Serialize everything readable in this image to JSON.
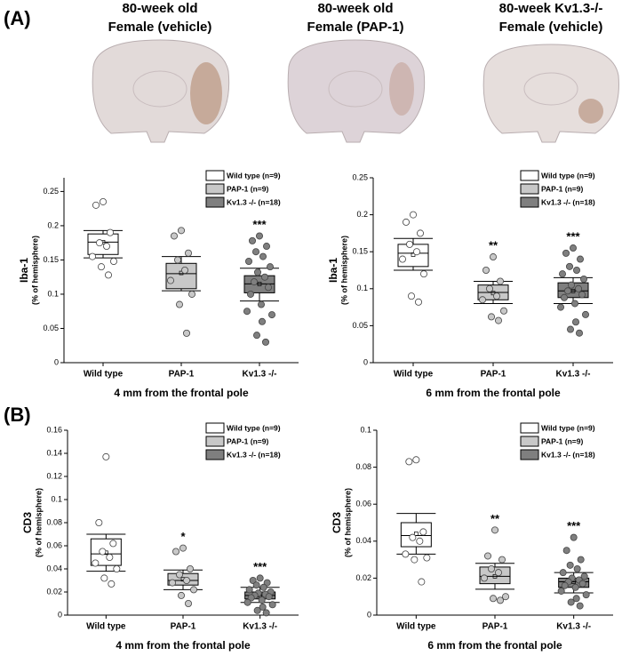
{
  "panel_labels": [
    "(A)",
    "(B)"
  ],
  "images": [
    {
      "title": [
        "80-week old",
        "Female (vehicle)"
      ]
    },
    {
      "title": [
        "80-week old",
        "Female (PAP-1)"
      ]
    },
    {
      "title": [
        "80-week Kv1.3-/-",
        "Female (vehicle)"
      ]
    }
  ],
  "chart_data": [
    {
      "type": "box",
      "ylabel": "Iba-1",
      "ylabel_sub": "(% of hemisphere)",
      "xlabel": "4 mm from the frontal pole",
      "categories": [
        "Wild type",
        "PAP-1",
        "Kv1.3 -/-"
      ],
      "ylim": [
        0,
        0.27
      ],
      "yticks": [
        0,
        0.05,
        0.1,
        0.15,
        0.2,
        0.25
      ],
      "legend": "top-right",
      "series": [
        {
          "name": "Wild type (n=9)",
          "color": "#ffffff",
          "q1": 0.158,
          "median": 0.176,
          "q3": 0.188,
          "whisker_low": 0.153,
          "whisker_high": 0.193,
          "mean": 0.176,
          "points": [
            0.235,
            0.23,
            0.19,
            0.175,
            0.17,
            0.155,
            0.148,
            0.14,
            0.128
          ]
        },
        {
          "name": "PAP-1 (n=9)",
          "color": "#c8c8c8",
          "q1": 0.108,
          "median": 0.13,
          "q3": 0.145,
          "whisker_low": 0.105,
          "whisker_high": 0.155,
          "mean": 0.131,
          "points": [
            0.193,
            0.185,
            0.16,
            0.15,
            0.135,
            0.12,
            0.1,
            0.085,
            0.043
          ]
        },
        {
          "name": "Kv1.3 -/- (n=18)",
          "color": "#7f7f7f",
          "q1": 0.102,
          "median": 0.115,
          "q3": 0.127,
          "whisker_low": 0.09,
          "whisker_high": 0.138,
          "mean": 0.115,
          "annotation": "***",
          "points": [
            0.185,
            0.178,
            0.17,
            0.162,
            0.155,
            0.148,
            0.14,
            0.132,
            0.125,
            0.118,
            0.11,
            0.1,
            0.085,
            0.075,
            0.07,
            0.06,
            0.04,
            0.03
          ]
        }
      ]
    },
    {
      "type": "box",
      "ylabel": "Iba-1",
      "ylabel_sub": "(% of hemisphere)",
      "xlabel": "6 mm from the frontal pole",
      "categories": [
        "Wild type",
        "PAP-1",
        "Kv1.3 -/-"
      ],
      "ylim": [
        0,
        0.25
      ],
      "yticks": [
        0,
        0.05,
        0.1,
        0.15,
        0.2,
        0.25
      ],
      "legend": "top-right",
      "series": [
        {
          "name": "Wild type (n=9)",
          "color": "#ffffff",
          "q1": 0.13,
          "median": 0.148,
          "q3": 0.16,
          "whisker_low": 0.125,
          "whisker_high": 0.168,
          "mean": 0.146,
          "points": [
            0.2,
            0.19,
            0.175,
            0.16,
            0.15,
            0.14,
            0.12,
            0.09,
            0.082
          ]
        },
        {
          "name": "PAP-1 (n=9)",
          "color": "#c8c8c8",
          "q1": 0.085,
          "median": 0.095,
          "q3": 0.105,
          "whisker_low": 0.08,
          "whisker_high": 0.11,
          "mean": 0.094,
          "annotation": "**",
          "points": [
            0.143,
            0.125,
            0.11,
            0.1,
            0.09,
            0.085,
            0.07,
            0.062,
            0.057
          ]
        },
        {
          "name": "Kv1.3 -/- (n=18)",
          "color": "#7f7f7f",
          "q1": 0.088,
          "median": 0.097,
          "q3": 0.108,
          "whisker_low": 0.08,
          "whisker_high": 0.115,
          "mean": 0.097,
          "annotation": "***",
          "points": [
            0.155,
            0.148,
            0.14,
            0.13,
            0.125,
            0.12,
            0.113,
            0.105,
            0.1,
            0.097,
            0.092,
            0.088,
            0.08,
            0.075,
            0.065,
            0.055,
            0.045,
            0.04
          ]
        }
      ]
    },
    {
      "type": "box",
      "ylabel": "CD3",
      "ylabel_sub": "(% of hemisphere)",
      "xlabel": "4 mm from the frontal pole",
      "categories": [
        "Wild type",
        "PAP-1",
        "Kv1.3 -/-"
      ],
      "ylim": [
        0,
        0.16
      ],
      "yticks": [
        0,
        0.02,
        0.04,
        0.06,
        0.08,
        0.1,
        0.12,
        0.14,
        0.16
      ],
      "legend": "top-right",
      "series": [
        {
          "name": "Wild type (n=9)",
          "color": "#ffffff",
          "q1": 0.043,
          "median": 0.053,
          "q3": 0.066,
          "whisker_low": 0.038,
          "whisker_high": 0.07,
          "mean": 0.054,
          "points": [
            0.137,
            0.08,
            0.062,
            0.055,
            0.05,
            0.045,
            0.04,
            0.032,
            0.027
          ]
        },
        {
          "name": "PAP-1 (n=9)",
          "color": "#c8c8c8",
          "q1": 0.026,
          "median": 0.03,
          "q3": 0.036,
          "whisker_low": 0.022,
          "whisker_high": 0.039,
          "mean": 0.031,
          "annotation": "*",
          "points": [
            0.058,
            0.055,
            0.04,
            0.035,
            0.03,
            0.028,
            0.022,
            0.017,
            0.01
          ]
        },
        {
          "name": "Kv1.3 -/- (n=18)",
          "color": "#7f7f7f",
          "q1": 0.014,
          "median": 0.017,
          "q3": 0.02,
          "whisker_low": 0.011,
          "whisker_high": 0.024,
          "mean": 0.017,
          "annotation": "***",
          "points": [
            0.032,
            0.03,
            0.028,
            0.026,
            0.024,
            0.022,
            0.02,
            0.019,
            0.018,
            0.017,
            0.016,
            0.015,
            0.013,
            0.011,
            0.009,
            0.007,
            0.004,
            0.002
          ]
        }
      ]
    },
    {
      "type": "box",
      "ylabel": "CD3",
      "ylabel_sub": "(% of hemisphere)",
      "xlabel": "6 mm from the frontal pole",
      "categories": [
        "Wild type",
        "PAP-1",
        "Kv1.3 -/-"
      ],
      "ylim": [
        0,
        0.1
      ],
      "yticks": [
        0,
        0.02,
        0.04,
        0.06,
        0.08,
        0.1
      ],
      "legend": "top-right",
      "series": [
        {
          "name": "Wild type (n=9)",
          "color": "#ffffff",
          "q1": 0.037,
          "median": 0.043,
          "q3": 0.05,
          "whisker_low": 0.033,
          "whisker_high": 0.055,
          "mean": 0.044,
          "points": [
            0.084,
            0.083,
            0.045,
            0.042,
            0.04,
            0.033,
            0.031,
            0.03,
            0.018
          ]
        },
        {
          "name": "PAP-1 (n=9)",
          "color": "#c8c8c8",
          "q1": 0.017,
          "median": 0.021,
          "q3": 0.026,
          "whisker_low": 0.014,
          "whisker_high": 0.028,
          "mean": 0.021,
          "annotation": "**",
          "points": [
            0.046,
            0.032,
            0.03,
            0.025,
            0.023,
            0.02,
            0.01,
            0.009,
            0.008
          ]
        },
        {
          "name": "Kv1.3 -/- (n=18)",
          "color": "#7f7f7f",
          "q1": 0.015,
          "median": 0.018,
          "q3": 0.02,
          "whisker_low": 0.012,
          "whisker_high": 0.023,
          "mean": 0.018,
          "annotation": "***",
          "points": [
            0.042,
            0.035,
            0.03,
            0.027,
            0.025,
            0.023,
            0.021,
            0.02,
            0.019,
            0.018,
            0.017,
            0.016,
            0.015,
            0.013,
            0.011,
            0.009,
            0.007,
            0.005
          ]
        }
      ]
    }
  ]
}
